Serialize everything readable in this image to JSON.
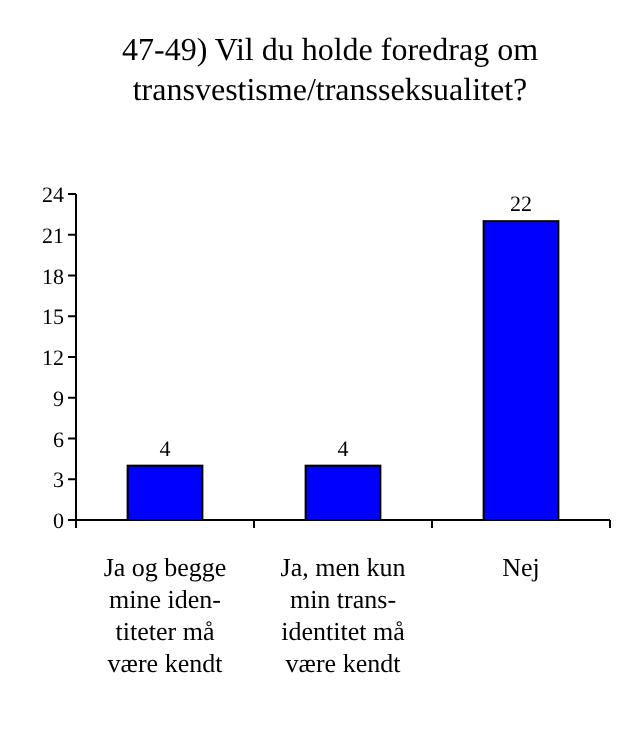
{
  "chart_data": {
    "type": "bar",
    "title": "47-49) Vil du holde foredrag om\ntransvestisme/transseksualitet?",
    "categories": [
      "Ja og begge\nmine iden-\ntiteter må\nvære kendt",
      "Ja, men kun\nmin trans-\nidentitet må\nvære kendt",
      "Nej"
    ],
    "values": [
      4,
      4,
      22
    ],
    "color": "#0000ff",
    "ylim": [
      0,
      24
    ],
    "yticks": [
      0,
      3,
      6,
      9,
      12,
      15,
      18,
      21,
      24
    ],
    "data_labels": true
  }
}
